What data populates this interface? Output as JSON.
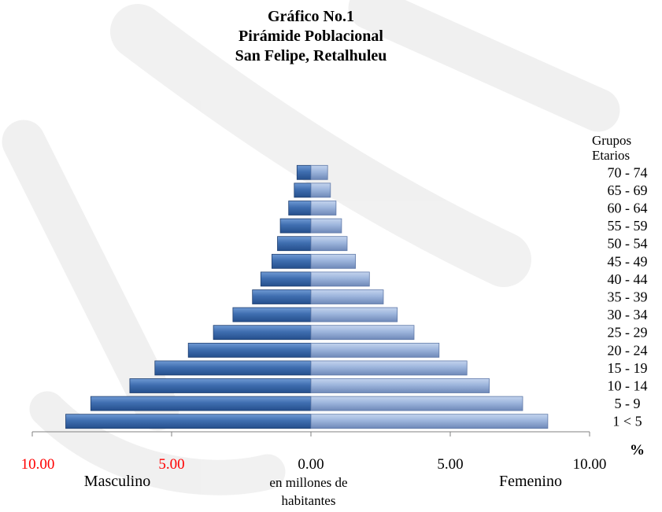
{
  "chart_data": {
    "type": "bar",
    "orientation": "horizontal-diverging",
    "title_lines": [
      "Gráfico No.1",
      "Pirámide Poblacional",
      "San Felipe, Retalhuleu"
    ],
    "category_header": [
      "Grupos",
      "Etarios"
    ],
    "categories": [
      "1 < 5",
      "5 - 9",
      "10 - 14",
      "15 - 19",
      "20 - 24",
      "25 - 29",
      "30 - 34",
      "35 - 39",
      "40 - 44",
      "45 - 49",
      "50 - 54",
      "55 - 59",
      "60 - 64",
      "65 - 69",
      "70 - 74"
    ],
    "series": [
      {
        "name": "Masculino",
        "side": "left",
        "color": "#3f6eb0",
        "values": [
          8.8,
          7.9,
          6.5,
          5.6,
          4.4,
          3.5,
          2.8,
          2.1,
          1.8,
          1.4,
          1.2,
          1.1,
          0.8,
          0.6,
          0.5
        ]
      },
      {
        "name": "Femenino",
        "side": "right",
        "color": "#9db5dc",
        "values": [
          8.5,
          7.6,
          6.4,
          5.6,
          4.6,
          3.7,
          3.1,
          2.6,
          2.1,
          1.6,
          1.3,
          1.1,
          0.9,
          0.7,
          0.6
        ]
      }
    ],
    "xlim": [
      -10,
      10
    ],
    "x_ticks": [
      {
        "value": -10,
        "label": "10.00",
        "color": "#ff0000"
      },
      {
        "value": -5,
        "label": "5.00",
        "color": "#ff0000"
      },
      {
        "value": 0,
        "label": "0.00",
        "color": "#000000"
      },
      {
        "value": 5,
        "label": "5.00",
        "color": "#000000"
      },
      {
        "value": 10,
        "label": "10.00",
        "color": "#000000"
      }
    ],
    "percent_label": "%",
    "xlabel_lines": [
      "en millones de",
      "habitantes"
    ]
  }
}
